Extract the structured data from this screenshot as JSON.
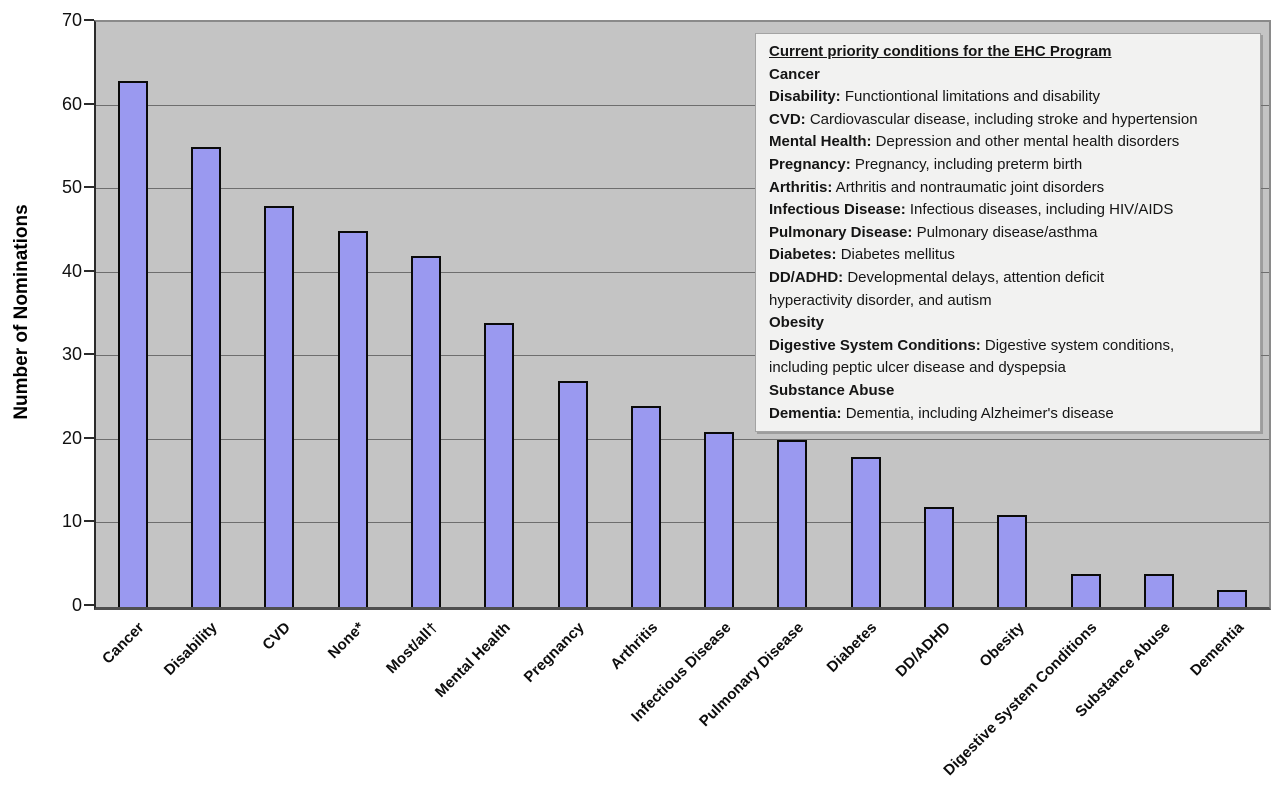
{
  "chart_data": {
    "type": "bar",
    "title": "",
    "xlabel": "",
    "ylabel": "Number of Nominations",
    "ylim": [
      0,
      70
    ],
    "yticks": [
      0,
      10,
      20,
      30,
      40,
      50,
      60,
      70
    ],
    "grid": true,
    "legend_position": "top-right-inside",
    "plot_background": "#c4c4c4",
    "bar_color": "#9a99f0",
    "bar_border_color": "#0a0a0a",
    "categories": [
      "Cancer",
      "Disability",
      "CVD",
      "None*",
      "Most/all†",
      "Mental Health",
      "Pregnancy",
      "Arthritis",
      "Infectious Disease",
      "Pulmonary Disease",
      "Diabetes",
      "DD/ADHD",
      "Obesity",
      "Digestive System Conditions",
      "Substance Abuse",
      "Dementia"
    ],
    "values": [
      63,
      55,
      48,
      45,
      42,
      34,
      27,
      24,
      21,
      20,
      18,
      12,
      11,
      4,
      4,
      2
    ]
  },
  "legend_box": {
    "title": "Current priority conditions for the EHC Program",
    "background": "#f2f2f1",
    "lines": [
      {
        "b": "Cancer",
        "t": ""
      },
      {
        "b": "Disability:",
        "t": " Functiontional limitations and disability"
      },
      {
        "b": "CVD:",
        "t": " Cardiovascular disease, including stroke and hypertension"
      },
      {
        "b": "Mental Health:",
        "t": " Depression and other mental health disorders"
      },
      {
        "b": "Pregnancy:",
        "t": " Pregnancy, including preterm birth"
      },
      {
        "b": "Arthritis:",
        "t": " Arthritis and nontraumatic joint disorders"
      },
      {
        "b": "Infectious Disease:",
        "t": " Infectious diseases, including HIV/AIDS"
      },
      {
        "b": "Pulmonary Disease:",
        "t": " Pulmonary disease/asthma"
      },
      {
        "b": "Diabetes:",
        "t": " Diabetes mellitus"
      },
      {
        "b": "DD/ADHD:",
        "t": " Developmental delays, attention deficit"
      },
      {
        "b": "",
        "t": "hyperactivity disorder, and autism"
      },
      {
        "b": "Obesity",
        "t": ""
      },
      {
        "b": "Digestive System Conditions:",
        "t": " Digestive system conditions,"
      },
      {
        "b": "",
        "t": "including peptic ulcer disease and dyspepsia"
      },
      {
        "b": "Substance Abuse",
        "t": ""
      },
      {
        "b": "Dementia:",
        "t": " Dementia, including Alzheimer's disease"
      }
    ]
  }
}
